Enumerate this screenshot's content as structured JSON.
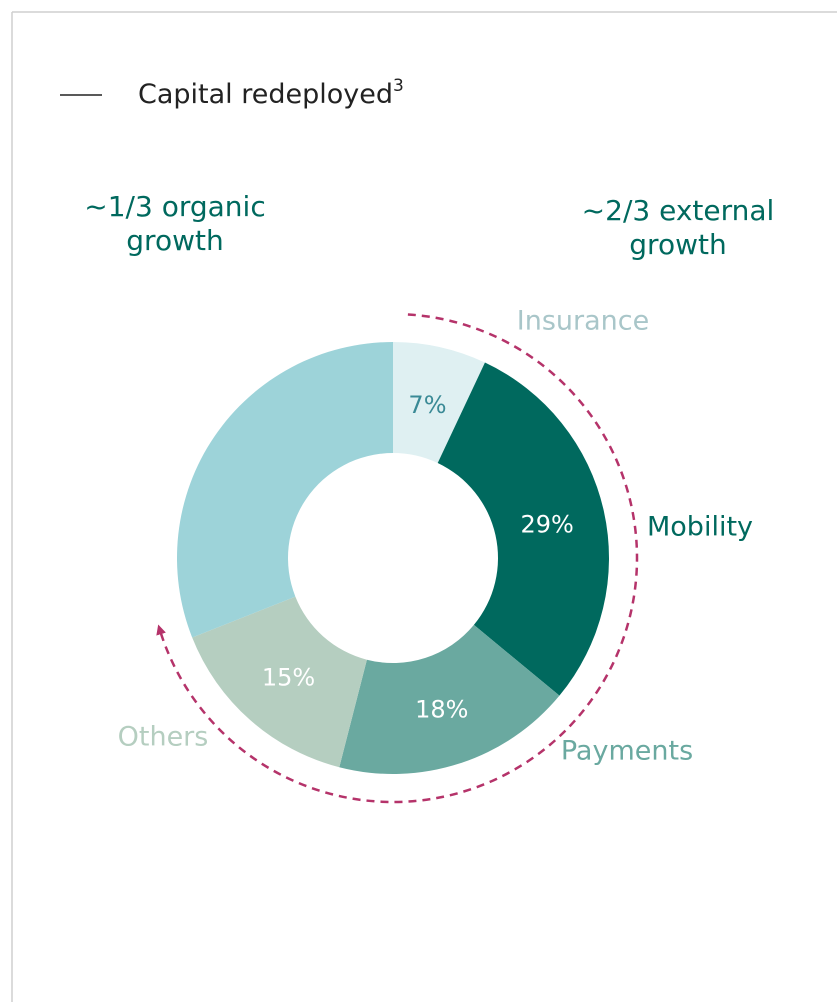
{
  "chart_data": {
    "type": "donut",
    "title": "Capital redeployed",
    "title_note": "3",
    "annotations": [
      [
        "~1/3 organic",
        "growth"
      ],
      [
        "~2/3 external",
        "growth"
      ]
    ],
    "categories": [
      "Insurance",
      "Mobility",
      "Payments",
      "Others",
      null
    ],
    "values": [
      7,
      29,
      18,
      15,
      31
    ],
    "value_labels": [
      "7%",
      "29%",
      "18%",
      "15%",
      null
    ],
    "colors": [
      "#dff0f2",
      "#00695e",
      "#6aa9a0",
      "#b5cec0",
      "#9dd3d9"
    ]
  }
}
